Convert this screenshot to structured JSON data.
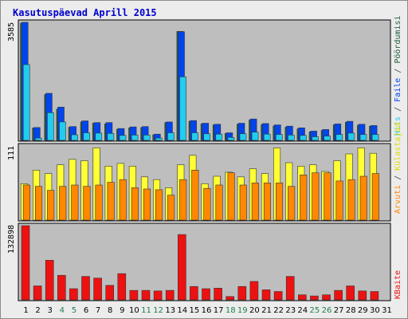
{
  "title": "Kasutuspäevad Aprill 2015",
  "colors": {
    "background": "#ececec",
    "panel": "#bebebe",
    "title": "#0000cc",
    "pages": "#206040",
    "files": "#0044ee",
    "hits": "#22ccee",
    "visits": "#ff8800",
    "visitors": "#ffff33",
    "kbytes": "#ee1111",
    "weekday_label": "#000000",
    "weekend_label": "#208050"
  },
  "chart_data": [
    {
      "type": "bar",
      "title": "Kasutuspäevad Aprill 2015",
      "y_max_label": "3585",
      "ylim": [
        0,
        3585
      ],
      "categories": [
        "1",
        "2",
        "3",
        "4",
        "5",
        "6",
        "7",
        "8",
        "9",
        "10",
        "11",
        "12",
        "13",
        "14",
        "15",
        "16",
        "17",
        "18",
        "19",
        "20",
        "21",
        "22",
        "23",
        "24",
        "25",
        "26",
        "27",
        "28",
        "29",
        "30",
        "31"
      ],
      "weekend_days": [
        "4",
        "5",
        "11",
        "12",
        "18",
        "19",
        "25",
        "26"
      ],
      "legend": [
        "Pöördumisi",
        "Faile",
        "Hits"
      ],
      "series": [
        {
          "name": "Pöördumisi",
          "values": [
            3560,
            375,
            1390,
            950,
            400,
            560,
            520,
            500,
            340,
            380,
            390,
            170,
            540,
            3310,
            580,
            500,
            470,
            210,
            490,
            620,
            480,
            440,
            400,
            350,
            260,
            300,
            470,
            550,
            460,
            430,
            0
          ]
        },
        {
          "name": "Faile",
          "values": [
            3585,
            390,
            1430,
            1010,
            420,
            590,
            540,
            540,
            360,
            410,
            420,
            190,
            560,
            3300,
            600,
            520,
            490,
            230,
            520,
            650,
            510,
            470,
            430,
            380,
            280,
            330,
            500,
            580,
            490,
            450,
            0
          ]
        },
        {
          "name": "Hits",
          "values": [
            2300,
            70,
            840,
            560,
            170,
            230,
            220,
            210,
            150,
            160,
            160,
            70,
            230,
            1930,
            230,
            200,
            190,
            90,
            200,
            250,
            190,
            180,
            160,
            150,
            110,
            130,
            180,
            220,
            180,
            180,
            0
          ]
        }
      ]
    },
    {
      "type": "bar",
      "y_max_label": "111",
      "ylim": [
        0,
        111
      ],
      "categories": [
        "1",
        "2",
        "3",
        "4",
        "5",
        "6",
        "7",
        "8",
        "9",
        "10",
        "11",
        "12",
        "13",
        "14",
        "15",
        "16",
        "17",
        "18",
        "19",
        "20",
        "21",
        "22",
        "23",
        "24",
        "25",
        "26",
        "27",
        "28",
        "29",
        "30",
        "31"
      ],
      "legend": [
        "Külastajad",
        "Arvuti"
      ],
      "series": [
        {
          "name": "Külastajad",
          "values": [
            54,
            74,
            69,
            82,
            90,
            88,
            107,
            80,
            84,
            80,
            64,
            60,
            48,
            82,
            96,
            54,
            65,
            71,
            64,
            76,
            69,
            107,
            85,
            80,
            82,
            72,
            88,
            98,
            107,
            99,
            0
          ]
        },
        {
          "name": "Arvuti",
          "values": [
            52,
            50,
            44,
            50,
            52,
            50,
            52,
            56,
            60,
            48,
            46,
            45,
            37,
            60,
            74,
            47,
            52,
            70,
            52,
            55,
            55,
            55,
            50,
            67,
            70,
            70,
            58,
            60,
            65,
            69,
            0
          ]
        }
      ]
    },
    {
      "type": "bar",
      "y_max_label": "132898",
      "ylim": [
        0,
        132898
      ],
      "categories": [
        "1",
        "2",
        "3",
        "4",
        "5",
        "6",
        "7",
        "8",
        "9",
        "10",
        "11",
        "12",
        "13",
        "14",
        "15",
        "16",
        "17",
        "18",
        "19",
        "20",
        "21",
        "22",
        "23",
        "24",
        "25",
        "26",
        "27",
        "28",
        "29",
        "30",
        "31"
      ],
      "legend": [
        "KBaite"
      ],
      "series": [
        {
          "name": "KBaite",
          "values": [
            132898,
            25000,
            71000,
            44000,
            20000,
            42000,
            39000,
            26000,
            47000,
            17000,
            17000,
            16000,
            17000,
            117000,
            24000,
            20000,
            21000,
            6000,
            24000,
            33000,
            18000,
            15000,
            42000,
            9000,
            7000,
            9000,
            17000,
            25000,
            16000,
            15000,
            0
          ]
        }
      ]
    }
  ]
}
